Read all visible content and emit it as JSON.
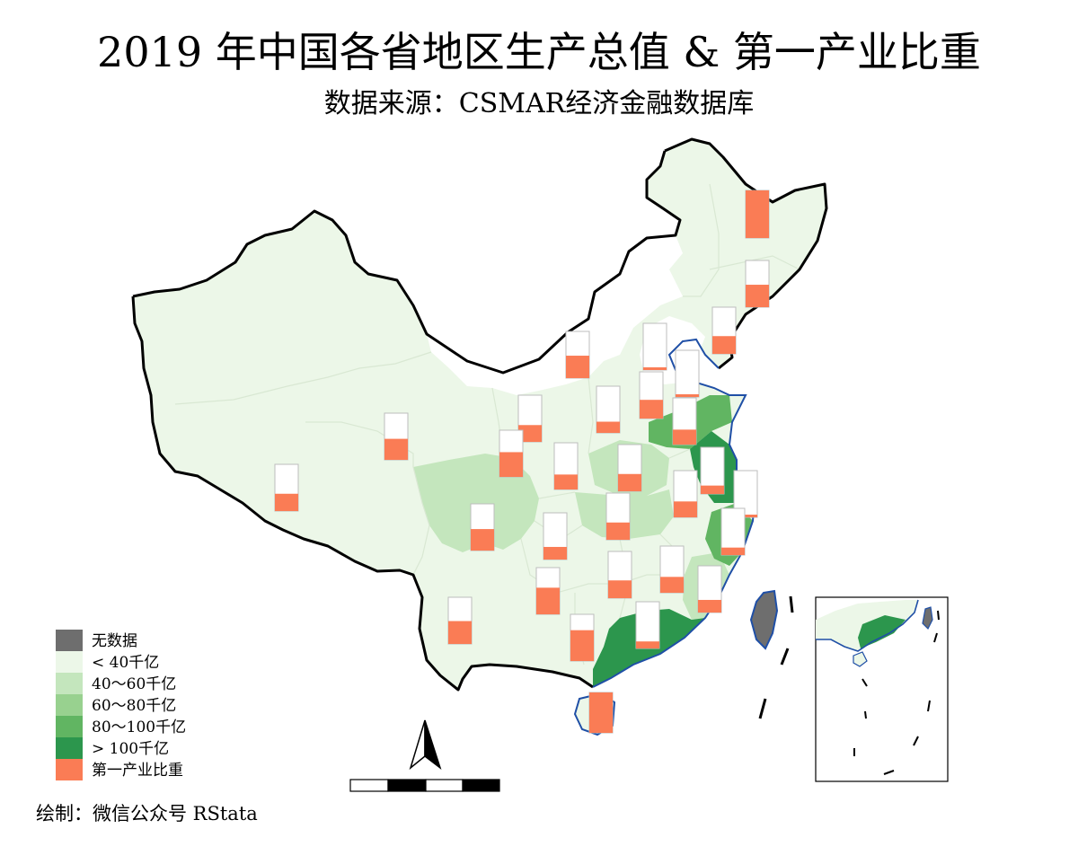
{
  "title": "2019 年中国各省地区生产总值 & 第一产业比重",
  "subtitle": "数据来源：CSMAR经济金融数据库",
  "credit": "绘制：微信公众号 RStata",
  "legend": {
    "items": [
      {
        "label": "无数据",
        "color": "#6e6e6e"
      },
      {
        "label": "< 40千亿",
        "color": "#ecf7e8"
      },
      {
        "label": "40～60千亿",
        "color": "#c4e6bd"
      },
      {
        "label": "60～80千亿",
        "color": "#98d18f"
      },
      {
        "label": "80～100千亿",
        "color": "#61b562"
      },
      {
        "label": "> 100千亿",
        "color": "#2c964d"
      },
      {
        "label": "第一产业比重",
        "color": "#fa7c55"
      }
    ]
  },
  "colors": {
    "border": "#000000",
    "coast": "#1f4fa6",
    "province_line": "#d9e8d3",
    "bar_fill": "#fa7c55",
    "bar_frame": "#bdbdbd"
  },
  "icons": [
    "north-arrow-icon",
    "scale-bar"
  ]
}
